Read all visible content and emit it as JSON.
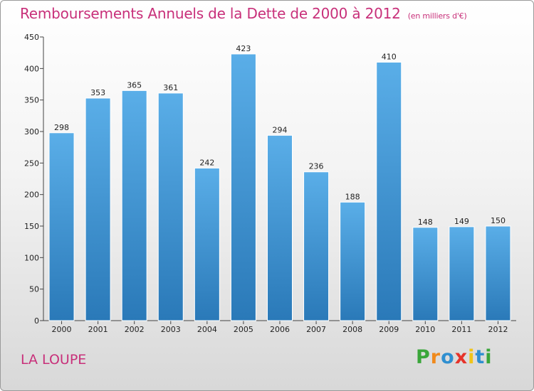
{
  "title": "Remboursements Annuels de la Dette de 2000 à 2012",
  "subtitle": "(en milliers d'€)",
  "town": "LA LOUPE",
  "logo": {
    "text": "Proxiti",
    "colors": [
      "#3aa63a",
      "#f08a1c",
      "#2f8fd0",
      "#e6332a",
      "#f0c419",
      "#2f8fd0",
      "#3aa63a"
    ]
  },
  "colors": {
    "title": "#c8307a",
    "bar_light": "#5aaee8",
    "bar_dark": "#2a79b8"
  },
  "chart_data": {
    "type": "bar",
    "categories": [
      "2000",
      "2001",
      "2002",
      "2003",
      "2004",
      "2005",
      "2006",
      "2007",
      "2008",
      "2009",
      "2010",
      "2011",
      "2012"
    ],
    "values": [
      298,
      353,
      365,
      361,
      242,
      423,
      294,
      236,
      188,
      410,
      148,
      149,
      150
    ],
    "yticks": [
      0,
      50,
      100,
      150,
      200,
      250,
      300,
      350,
      400,
      450
    ],
    "ylim": [
      0,
      450
    ],
    "grid": false,
    "data_labels": true
  }
}
